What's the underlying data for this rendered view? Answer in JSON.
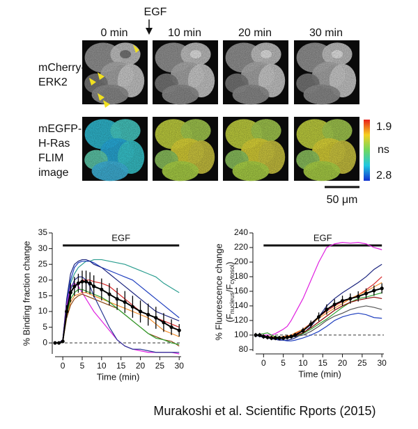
{
  "figure": {
    "stimulus": "EGF",
    "times": [
      "0 min",
      "10 min",
      "20 min",
      "30 min"
    ],
    "rows": [
      [
        "mCherry-",
        "ERK2"
      ],
      [
        "mEGFP-",
        "H-Ras",
        "FLIM",
        "image"
      ]
    ],
    "colorbar": {
      "top": "1.9",
      "unit": "ns",
      "bottom": "2.8"
    },
    "scale_bar": "50 μm"
  },
  "caption": "Murakoshi et al. Scientific Rports (2015)",
  "chart_data": [
    {
      "type": "line",
      "xlabel": "Time (min)",
      "ylabel": "% Binding fraction change",
      "annotation": {
        "text": "EGF",
        "from": 0,
        "to": 30
      },
      "hline": 0,
      "xlim": [
        -2,
        30.5
      ],
      "ylim": [
        -3.5,
        35
      ],
      "xticks": [
        0,
        5,
        10,
        15,
        20,
        25,
        30
      ],
      "yticks": [
        0,
        5,
        10,
        15,
        20,
        25,
        30,
        35
      ],
      "x": [
        -2,
        -1,
        0,
        1,
        2,
        3,
        4,
        5,
        6,
        7,
        8,
        10,
        12,
        14,
        16,
        18,
        20,
        22,
        24,
        26,
        28,
        30
      ],
      "series": [
        {
          "color": "#2a9d8f",
          "values": [
            0,
            0,
            1,
            12,
            19,
            22,
            24,
            25,
            26,
            26,
            26.5,
            26.5,
            26,
            25.5,
            25,
            24,
            23,
            22,
            21,
            19,
            17.5,
            16
          ]
        },
        {
          "color": "#1f3fbf",
          "values": [
            0,
            0,
            1,
            13,
            20,
            24,
            25.5,
            26,
            26,
            26,
            25.5,
            24,
            23,
            22,
            21,
            20,
            18,
            16,
            14,
            12,
            10,
            8
          ]
        },
        {
          "color": "#1a237e",
          "values": [
            0,
            0,
            1,
            14,
            22,
            25,
            26,
            26.5,
            26.5,
            26,
            25,
            24,
            22,
            20,
            18,
            16,
            14,
            12,
            10,
            9,
            8,
            7
          ]
        },
        {
          "color": "#d62728",
          "values": [
            0,
            0,
            1,
            10,
            16,
            18,
            19,
            20,
            20,
            20,
            19.5,
            19,
            18,
            16,
            14,
            12,
            10,
            9,
            8,
            7,
            6,
            5
          ]
        },
        {
          "color": "#e020e0",
          "values": [
            0,
            0,
            1,
            12,
            18,
            19,
            18,
            16,
            14,
            12,
            10,
            7,
            4,
            1,
            -1,
            -2,
            -2.5,
            -3,
            -3,
            -3,
            -3,
            -3.5
          ]
        },
        {
          "color": "#f28c28",
          "values": [
            0,
            0,
            0.5,
            8,
            13,
            15,
            15.5,
            16,
            16,
            15.5,
            15,
            14,
            13,
            12,
            11,
            10,
            9,
            8,
            6,
            4,
            3,
            2
          ]
        },
        {
          "color": "#8b4513",
          "values": [
            0,
            0,
            0.5,
            8,
            12,
            14,
            15,
            15.5,
            15,
            14.5,
            14,
            13,
            12,
            11,
            9,
            7,
            5,
            3,
            2,
            1,
            0.5,
            -1
          ]
        },
        {
          "color": "#2ca02c",
          "values": [
            0,
            0,
            0.5,
            9,
            14,
            16,
            17,
            17,
            16.5,
            16,
            15.5,
            14.5,
            13,
            11,
            9,
            7,
            5,
            3,
            1.5,
            1,
            0,
            -0.5
          ]
        },
        {
          "color": "#283593",
          "values": [
            0,
            0,
            1,
            11,
            17,
            20,
            21,
            21,
            20,
            18,
            15,
            10,
            5,
            1,
            -1,
            -2,
            -2,
            -2.5,
            -3,
            -3,
            -3,
            -3
          ]
        },
        {
          "color": "#000000",
          "values": [
            0,
            0,
            0.5,
            10,
            16,
            18,
            19,
            19.5,
            19.5,
            19,
            18,
            17,
            15.5,
            14,
            13,
            11.5,
            10,
            9,
            8,
            6.5,
            5,
            4
          ],
          "errors": [
            0,
            0,
            0.5,
            2,
            3,
            3,
            3,
            3.5,
            3.5,
            3.5,
            3.5,
            3.5,
            3.5,
            3.5,
            3.5,
            3.5,
            3.5,
            3.5,
            3.5,
            3,
            2.5,
            2
          ]
        }
      ]
    },
    {
      "type": "line",
      "xlabel": "Time (min)",
      "ylabel": "% Fluorescence change",
      "ylabel_parts": [
        "(F",
        "nucleus",
        "/F",
        "cytosol",
        ")"
      ],
      "annotation": {
        "text": "EGF",
        "from": 0,
        "to": 30
      },
      "hline": 100,
      "xlim": [
        -2,
        30.5
      ],
      "ylim": [
        78,
        240
      ],
      "xticks": [
        0,
        5,
        10,
        15,
        20,
        25,
        30
      ],
      "yticks": [
        80,
        100,
        120,
        140,
        160,
        180,
        200,
        220,
        240
      ],
      "x": [
        -2,
        -1,
        0,
        1,
        2,
        3,
        4,
        5,
        6,
        7,
        8,
        10,
        12,
        14,
        16,
        18,
        20,
        22,
        24,
        26,
        28,
        30
      ],
      "series": [
        {
          "color": "#e020e0",
          "values": [
            100,
            100,
            100,
            100,
            100,
            102,
            105,
            108,
            112,
            120,
            130,
            150,
            175,
            200,
            220,
            225,
            227,
            226,
            227,
            225,
            220,
            217
          ]
        },
        {
          "color": "#1a237e",
          "values": [
            100,
            98,
            97,
            96,
            95,
            94,
            93,
            93,
            93,
            94,
            96,
            102,
            112,
            125,
            140,
            150,
            158,
            165,
            172,
            180,
            190,
            197
          ]
        },
        {
          "color": "#1f3fbf",
          "values": [
            100,
            100,
            98,
            97,
            96,
            95,
            94,
            93,
            92,
            92,
            93,
            96,
            100,
            105,
            112,
            120,
            125,
            128,
            130,
            128,
            124,
            123
          ]
        },
        {
          "color": "#d62728",
          "values": [
            100,
            100,
            99,
            98,
            97,
            97,
            97,
            97,
            98,
            100,
            102,
            108,
            116,
            125,
            133,
            140,
            146,
            150,
            155,
            162,
            170,
            180
          ]
        },
        {
          "color": "#f28c28",
          "values": [
            100,
            100,
            99,
            98,
            98,
            97,
            97,
            98,
            99,
            100,
            103,
            108,
            115,
            123,
            130,
            137,
            143,
            150,
            155,
            160,
            166,
            172
          ]
        },
        {
          "color": "#2ca02c",
          "values": [
            100,
            101,
            102,
            103,
            100,
            98,
            97,
            96,
            96,
            97,
            98,
            102,
            108,
            115,
            122,
            130,
            138,
            145,
            150,
            152,
            155,
            158
          ]
        },
        {
          "color": "#8b0000",
          "values": [
            100,
            100,
            99,
            98,
            97,
            96,
            96,
            96,
            96,
            97,
            99,
            103,
            110,
            118,
            126,
            134,
            140,
            145,
            148,
            150,
            152,
            150
          ]
        },
        {
          "color": "#555555",
          "values": [
            100,
            100,
            99,
            98,
            97,
            96,
            95,
            95,
            96,
            97,
            98,
            100,
            105,
            112,
            120,
            126,
            130,
            135,
            138,
            140,
            138,
            135
          ]
        },
        {
          "color": "#000000",
          "values": [
            100,
            100,
            98,
            97,
            96,
            96,
            96,
            96,
            97,
            98,
            100,
            106,
            115,
            125,
            135,
            142,
            147,
            150,
            153,
            157,
            161,
            164
          ],
          "errors": [
            3,
            3,
            3,
            3,
            3,
            3,
            3,
            3,
            3,
            3,
            3,
            4,
            5,
            6,
            7,
            7,
            7,
            7,
            7,
            7,
            7,
            7
          ]
        }
      ]
    }
  ]
}
